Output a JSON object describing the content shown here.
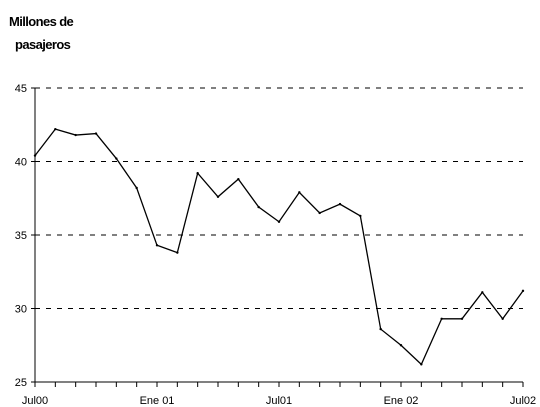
{
  "chart_data": {
    "type": "line",
    "ylabel_lines": [
      "Millones de",
      "pasajeros"
    ],
    "xlabel": "",
    "ylim": [
      25,
      45
    ],
    "yticks": [
      25,
      30,
      35,
      40,
      45
    ],
    "xtick_labels": [
      "Jul00",
      "Ene 01",
      "Jul01",
      "Ene 02",
      "Jul02"
    ],
    "grid": "horizontal-dashed",
    "x": [
      "2000-07",
      "2000-08",
      "2000-09",
      "2000-10",
      "2000-11",
      "2000-12",
      "2001-01",
      "2001-02",
      "2001-03",
      "2001-04",
      "2001-05",
      "2001-06",
      "2001-07",
      "2001-08",
      "2001-09",
      "2001-10",
      "2001-11",
      "2001-12",
      "2002-01",
      "2002-02",
      "2002-03",
      "2002-04",
      "2002-05",
      "2002-06",
      "2002-07"
    ],
    "series": [
      {
        "values": [
          40.4,
          42.2,
          41.8,
          41.9,
          40.2,
          38.2,
          34.3,
          33.8,
          39.2,
          37.6,
          38.8,
          36.9,
          35.9,
          37.9,
          36.5,
          37.1,
          36.3,
          28.6,
          27.5,
          26.2,
          29.3,
          29.3,
          31.1,
          29.3,
          31.2
        ],
        "color": "#000000"
      }
    ]
  }
}
